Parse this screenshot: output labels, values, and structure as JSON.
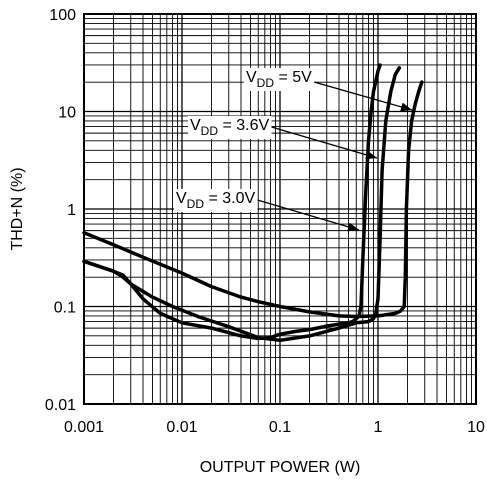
{
  "chart_data": {
    "type": "line",
    "xlabel": "OUTPUT POWER (W)",
    "ylabel": "THD+N (%)",
    "xscale": "log",
    "yscale": "log",
    "xlim": [
      0.001,
      10
    ],
    "ylim": [
      0.01,
      100
    ],
    "grid": true,
    "x_ticks": [
      "0.001",
      "0.01",
      "0.1",
      "1",
      "10"
    ],
    "y_ticks": [
      "0.01",
      "0.1",
      "1",
      "10",
      "100"
    ],
    "annotations": [
      {
        "prefix": "V",
        "sub": "DD",
        "suffix": " = 5V",
        "points_to_series": 2
      },
      {
        "prefix": "V",
        "sub": "DD",
        "suffix": " = 3.6V",
        "points_to_series": 1
      },
      {
        "prefix": "V",
        "sub": "DD",
        "suffix": " = 3.0V",
        "points_to_series": 0
      }
    ],
    "series": [
      {
        "x": [
          0.001,
          0.002,
          0.0025,
          0.003,
          0.004,
          0.006,
          0.01,
          0.02,
          0.04,
          0.06,
          0.08,
          0.1,
          0.15,
          0.2,
          0.3,
          0.4,
          0.5,
          0.55,
          0.6,
          0.64,
          0.67,
          0.7,
          0.75,
          0.8,
          0.85,
          0.9,
          1.0,
          1.05
        ],
        "y": [
          0.29,
          0.23,
          0.21,
          0.17,
          0.12,
          0.085,
          0.068,
          0.06,
          0.05,
          0.047,
          0.048,
          0.052,
          0.056,
          0.058,
          0.063,
          0.066,
          0.068,
          0.07,
          0.075,
          0.08,
          0.1,
          0.3,
          1.5,
          5.0,
          10.0,
          16.0,
          26.0,
          30.0
        ]
      },
      {
        "x": [
          0.001,
          0.002,
          0.0025,
          0.003,
          0.005,
          0.008,
          0.015,
          0.03,
          0.06,
          0.1,
          0.2,
          0.4,
          0.6,
          0.8,
          0.9,
          0.95,
          1.0,
          1.05,
          1.1,
          1.2,
          1.35,
          1.5,
          1.65
        ],
        "y": [
          0.29,
          0.23,
          0.2,
          0.17,
          0.125,
          0.1,
          0.078,
          0.062,
          0.048,
          0.045,
          0.05,
          0.06,
          0.068,
          0.07,
          0.075,
          0.085,
          0.12,
          0.5,
          2.5,
          8.0,
          16.0,
          24.0,
          28.0
        ]
      },
      {
        "x": [
          0.001,
          0.002,
          0.004,
          0.01,
          0.02,
          0.04,
          0.06,
          0.1,
          0.2,
          0.4,
          0.6,
          1.0,
          1.5,
          1.7,
          1.85,
          1.9,
          1.95,
          2.05,
          2.2,
          2.4,
          2.6,
          2.8
        ],
        "y": [
          0.57,
          0.43,
          0.32,
          0.22,
          0.16,
          0.125,
          0.112,
          0.1,
          0.088,
          0.08,
          0.079,
          0.08,
          0.085,
          0.09,
          0.1,
          0.2,
          1.0,
          4.0,
          8.0,
          12.0,
          16.0,
          20.0
        ]
      }
    ]
  }
}
